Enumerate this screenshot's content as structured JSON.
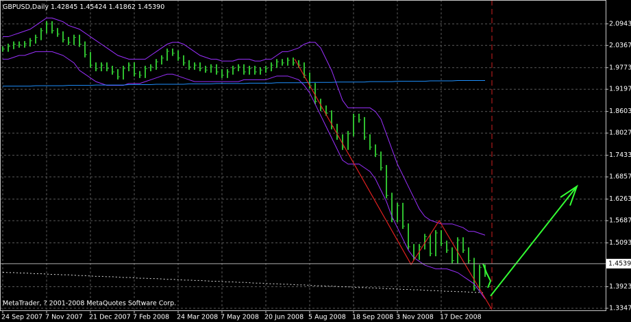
{
  "chart_data": {
    "type": "price-bars",
    "title": "GBPUSD,Daily",
    "quote": [
      "1.42845",
      "1.45424",
      "1.41862",
      "1.45390"
    ],
    "footer": "MetaTrader, ? 2001-2008 MetaQuotes Software Corp.",
    "categories": [
      "24 Sep 2007",
      null,
      null,
      null,
      null,
      null,
      null,
      null,
      "7 Nov 2007",
      null,
      null,
      null,
      null,
      null,
      null,
      null,
      "21 Dec 2007",
      null,
      null,
      null,
      null,
      null,
      null,
      null,
      "7 Feb 2008",
      null,
      null,
      null,
      null,
      null,
      null,
      null,
      "24 Mar 2008",
      null,
      null,
      null,
      null,
      null,
      null,
      null,
      "7 May 2008",
      null,
      null,
      null,
      null,
      null,
      null,
      null,
      "20 Jun 2008",
      null,
      null,
      null,
      null,
      null,
      null,
      null,
      "5 Aug 2008",
      null,
      null,
      null,
      null,
      null,
      null,
      null,
      "18 Sep 2008",
      null,
      null,
      null,
      null,
      null,
      null,
      null,
      "3 Nov 2008",
      null,
      null,
      null,
      null,
      null,
      null,
      null,
      "17 Dec 2008",
      null,
      null,
      null,
      null,
      null,
      null,
      null,
      null
    ],
    "series": [
      {
        "style": "bars",
        "color": "#2fbf2f",
        "values": [
          2.027,
          2.034,
          2.04,
          2.038,
          2.041,
          2.049,
          2.058,
          2.076,
          2.094,
          2.076,
          2.067,
          2.052,
          2.045,
          2.058,
          2.04,
          2.012,
          1.984,
          1.975,
          1.984,
          1.975,
          1.966,
          1.953,
          1.975,
          1.984,
          1.961,
          1.957,
          1.975,
          1.979,
          1.993,
          2.003,
          2.021,
          2.016,
          2.003,
          1.99,
          1.979,
          1.984,
          1.975,
          1.971,
          1.979,
          1.966,
          1.957,
          1.966,
          1.975,
          1.979,
          1.966,
          1.975,
          1.966,
          1.971,
          1.975,
          1.984,
          1.993,
          1.99,
          1.997,
          1.99,
          1.984,
          1.957,
          1.929,
          1.887,
          1.869,
          1.856,
          1.82,
          1.792,
          1.765,
          1.801,
          1.847,
          1.838,
          1.792,
          1.765,
          1.746,
          1.71,
          1.636,
          1.572,
          1.609,
          1.554,
          1.499,
          1.471,
          1.499,
          1.526,
          1.481,
          1.536,
          1.508,
          1.49,
          1.462,
          1.517,
          1.49,
          1.462,
          1.389,
          1.444,
          1.426
        ]
      },
      {
        "style": "line",
        "color": "#9b30ff",
        "values": [
          2.06,
          2.06,
          2.065,
          2.07,
          2.075,
          2.08,
          2.09,
          2.1,
          2.11,
          2.11,
          2.105,
          2.1,
          2.09,
          2.085,
          2.08,
          2.07,
          2.06,
          2.05,
          2.04,
          2.03,
          2.02,
          2.01,
          2.005,
          2.0,
          2.0,
          2.0,
          2.0,
          2.01,
          2.02,
          2.03,
          2.04,
          2.045,
          2.045,
          2.04,
          2.03,
          2.02,
          2.01,
          2.005,
          2.0,
          2.0,
          1.995,
          1.995,
          1.995,
          2.0,
          2.0,
          2.0,
          1.995,
          1.995,
          2.0,
          2.0,
          2.01,
          2.02,
          2.02,
          2.025,
          2.03,
          2.04,
          2.045,
          2.045,
          2.03,
          2.0,
          1.97,
          1.93,
          1.89,
          1.87,
          1.87,
          1.87,
          1.87,
          1.87,
          1.86,
          1.84,
          1.8,
          1.76,
          1.72,
          1.69,
          1.66,
          1.63,
          1.6,
          1.58,
          1.57,
          1.565,
          1.56,
          1.56,
          1.56,
          1.555,
          1.55,
          1.54,
          1.54,
          1.535,
          1.53
        ]
      },
      {
        "style": "line",
        "color": "#9b30ff",
        "values": [
          2.0,
          2.0,
          2.005,
          2.01,
          2.01,
          2.015,
          2.02,
          2.02,
          2.02,
          2.02,
          2.015,
          2.01,
          2.0,
          1.99,
          1.97,
          1.96,
          1.95,
          1.94,
          1.935,
          1.93,
          1.93,
          1.93,
          1.93,
          1.935,
          1.935,
          1.935,
          1.94,
          1.945,
          1.95,
          1.955,
          1.96,
          1.96,
          1.955,
          1.95,
          1.945,
          1.94,
          1.94,
          1.94,
          1.94,
          1.94,
          1.94,
          1.94,
          1.94,
          1.94,
          1.945,
          1.945,
          1.945,
          1.945,
          1.945,
          1.95,
          1.955,
          1.955,
          1.955,
          1.95,
          1.945,
          1.93,
          1.91,
          1.88,
          1.85,
          1.82,
          1.79,
          1.76,
          1.73,
          1.72,
          1.72,
          1.72,
          1.71,
          1.7,
          1.68,
          1.65,
          1.62,
          1.58,
          1.55,
          1.52,
          1.49,
          1.47,
          1.46,
          1.45,
          1.445,
          1.44,
          1.44,
          1.44,
          1.435,
          1.43,
          1.42,
          1.41,
          1.4,
          1.38,
          1.36
        ]
      },
      {
        "style": "line",
        "color": "#1e90ff",
        "values": [
          1.928,
          1.928,
          1.928,
          1.928,
          1.928,
          1.928,
          1.929,
          1.929,
          1.929,
          1.929,
          1.929,
          1.929,
          1.93,
          1.93,
          1.93,
          1.93,
          1.93,
          1.931,
          1.931,
          1.931,
          1.931,
          1.931,
          1.931,
          1.932,
          1.932,
          1.932,
          1.932,
          1.932,
          1.933,
          1.933,
          1.933,
          1.933,
          1.933,
          1.933,
          1.934,
          1.934,
          1.934,
          1.934,
          1.934,
          1.935,
          1.935,
          1.935,
          1.935,
          1.935,
          1.935,
          1.936,
          1.936,
          1.936,
          1.936,
          1.936,
          1.937,
          1.937,
          1.937,
          1.937,
          1.937,
          1.937,
          1.938,
          1.938,
          1.938,
          1.938,
          1.938,
          1.939,
          1.939,
          1.939,
          1.939,
          1.939,
          1.939,
          1.94,
          1.94,
          1.94,
          1.94,
          1.94,
          1.941,
          1.941,
          1.941,
          1.941,
          1.941,
          1.941,
          1.942,
          1.942,
          1.942,
          1.942,
          1.942,
          1.943,
          1.943,
          1.943,
          1.943,
          1.943,
          1.943
        ]
      },
      {
        "style": "dashed",
        "color": "#dddddd",
        "values": [
          1.431,
          1.43,
          1.43,
          1.429,
          1.429,
          1.428,
          1.427,
          1.427,
          1.426,
          1.425,
          1.425,
          1.424,
          1.424,
          1.423,
          1.422,
          1.422,
          1.421,
          1.42,
          1.42,
          1.419,
          1.419,
          1.418,
          1.417,
          1.417,
          1.416,
          1.415,
          1.415,
          1.414,
          1.414,
          1.413,
          1.412,
          1.412,
          1.411,
          1.41,
          1.41,
          1.409,
          1.409,
          1.408,
          1.407,
          1.407,
          1.406,
          1.405,
          1.405,
          1.404,
          1.404,
          1.403,
          1.402,
          1.402,
          1.401,
          1.4,
          1.4,
          1.399,
          1.399,
          1.398,
          1.397,
          1.397,
          1.396,
          1.395,
          1.395,
          1.394,
          1.394,
          1.393,
          1.392,
          1.392,
          1.391,
          1.39,
          1.39,
          1.389,
          1.389,
          1.388,
          1.387,
          1.387,
          1.386,
          1.385,
          1.385,
          1.384,
          1.384,
          1.383,
          1.382,
          1.382,
          1.381,
          1.38,
          1.38,
          1.379,
          1.379,
          1.378,
          1.377,
          1.377,
          1.376
        ]
      }
    ],
    "ylim": [
      1.331,
      2.158
    ],
    "yticks": [
      {
        "value": 2.0943,
        "label": "2.09430"
      },
      {
        "value": 2.0367,
        "label": "2.03670"
      },
      {
        "value": 1.9773,
        "label": "1.97730"
      },
      {
        "value": 1.9197,
        "label": "1.91970"
      },
      {
        "value": 1.8603,
        "label": "1.86030"
      },
      {
        "value": 1.8027,
        "label": "1.80270"
      },
      {
        "value": 1.7433,
        "label": "1.74330"
      },
      {
        "value": 1.6857,
        "label": "1.68570"
      },
      {
        "value": 1.6263,
        "label": "1.62630"
      },
      {
        "value": 1.5687,
        "label": "1.56870"
      },
      {
        "value": 1.5093,
        "label": "1.50930"
      },
      {
        "value": 1.3923,
        "label": "1.39230"
      },
      {
        "value": 1.3347,
        "label": "1.33470"
      }
    ],
    "current_price": {
      "value": 1.4539,
      "label": "1.45390"
    },
    "grid": true
  }
}
